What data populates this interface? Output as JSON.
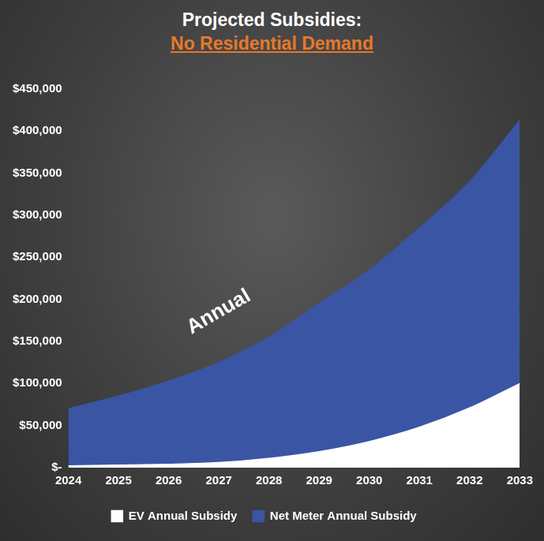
{
  "chart_data": {
    "type": "area",
    "title": "Projected Subsidies:",
    "subtitle": "No Residential Demand",
    "categories": [
      "2024",
      "2025",
      "2026",
      "2027",
      "2028",
      "2029",
      "2030",
      "2031",
      "2032",
      "2033"
    ],
    "series": [
      {
        "name": "EV Annual Subsidy",
        "color": "#ffffff",
        "values": [
          2000,
          3000,
          4000,
          6000,
          11000,
          19000,
          31000,
          48000,
          71000,
          100000
        ]
      },
      {
        "name": "Net Meter Annual Subsidy",
        "color": "#3a55a4",
        "values": [
          68000,
          82000,
          99000,
          119000,
          144000,
          176000,
          204000,
          237000,
          269000,
          313000
        ]
      }
    ],
    "stacked": true,
    "ylim": [
      0,
      450000
    ],
    "yticks": [
      {
        "value": 0,
        "label": "$-"
      },
      {
        "value": 50000,
        "label": "$50,000"
      },
      {
        "value": 100000,
        "label": "$100,000"
      },
      {
        "value": 150000,
        "label": "$150,000"
      },
      {
        "value": 200000,
        "label": "$200,000"
      },
      {
        "value": 250000,
        "label": "$250,000"
      },
      {
        "value": 300000,
        "label": "$300,000"
      },
      {
        "value": 350000,
        "label": "$350,000"
      },
      {
        "value": 400000,
        "label": "$400,000"
      },
      {
        "value": 450000,
        "label": "$450,000"
      }
    ],
    "grid": false,
    "legend": "bottom",
    "annotations": [
      {
        "text": "Annual",
        "x": "2027",
        "y": 185000
      }
    ]
  }
}
